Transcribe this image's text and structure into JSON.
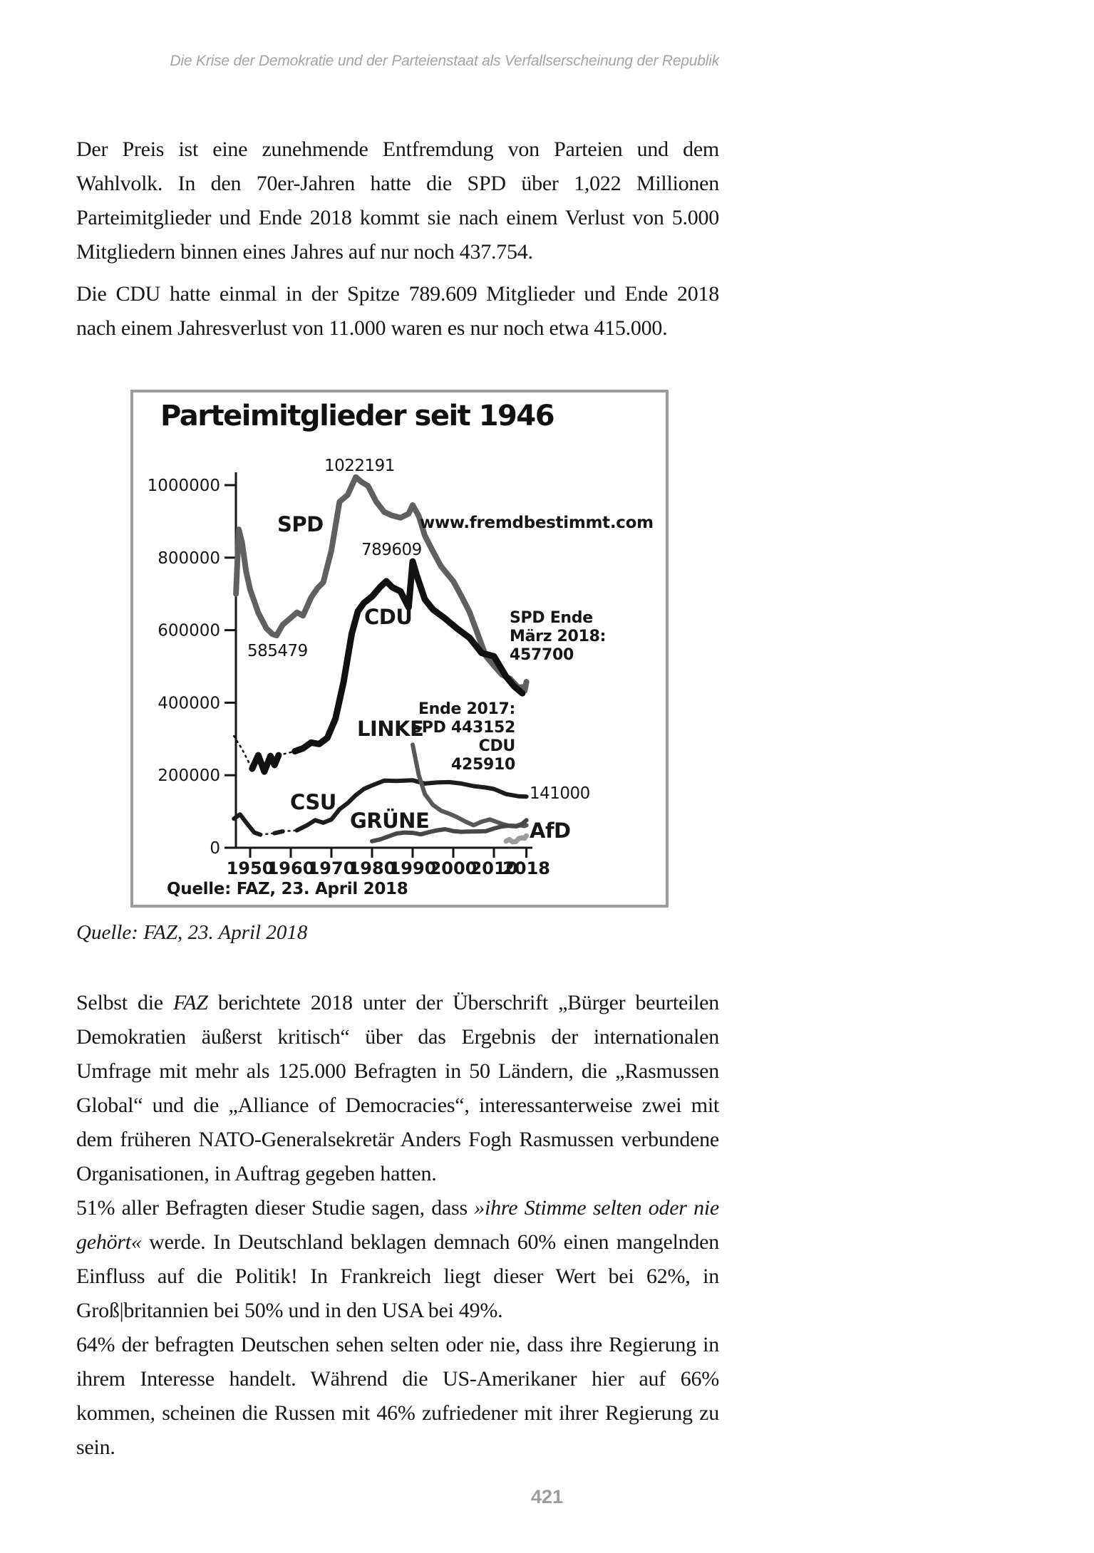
{
  "page": {
    "header": "Die Krise der Demokratie und der Parteienstaat als Verfallserscheinung der Republik",
    "page_number": "421"
  },
  "paragraphs": {
    "p1": "Der Preis ist eine zunehmende Entfremdung von Parteien und dem Wahlvolk. In den 70er-Jahren hatte die SPD über 1,022 Millionen Parteimitglieder und Ende 2018 kommt sie nach einem Verlust von 5.000 Mitgliedern binnen eines Jahres auf nur noch 437.754.",
    "p2": "Die CDU hatte einmal in der Spitze 789.609 Mitglieder und Ende 2018 nach einem Jahresverlust von 11.000 waren es nur noch etwa 415.000.",
    "p3_pre": "Selbst die ",
    "p3_italic": "FAZ",
    "p3_post": " berichtete 2018 unter der Überschrift „Bürger beurteilen Demokratien äußerst kritisch“ über das Ergebnis der internationalen Umfrage mit mehr als 125.000 Befragten in 50 Ländern, die „Rasmussen Global“ und die „Alliance of Democracies“, interessanterweise zwei mit dem früheren NATO-Generalsekretär Anders Fogh Rasmussen verbundene Organisationen, in Auftrag gegeben hatten.",
    "p4_pre": "51% aller Befragten dieser Studie sagen, dass ",
    "p4_italic": "»ihre Stimme selten oder nie gehört«",
    "p4_post": " werde. In Deutschland beklagen demnach 60% einen mangelnden Einfluss auf die Politik! In Frankreich liegt dieser Wert bei 62%, in Groß|britannien bei 50% und in den USA bei 49%.",
    "p5": "64% der befragten Deutschen sehen selten oder nie, dass ihre Regierung in ihrem Interesse handelt. Während die US-Amerikaner hier auf 66% kommen, scheinen die Russen mit 46% zufriedener mit ihrer Regierung zu sein."
  },
  "figure": {
    "caption": "Quelle: FAZ, 23. April 2018"
  },
  "chart_data": {
    "type": "line",
    "title": "Parteimitglieder seit 1946",
    "source": "Quelle: FAZ, 23. April 2018",
    "xlabel": "",
    "ylabel": "",
    "xlim": [
      1946,
      2018
    ],
    "ylim": [
      0,
      1050000
    ],
    "grid": false,
    "legend_position": "inline-labels",
    "colors": {
      "border": "#9d9d9d",
      "axis": "#161616",
      "spd": "#606060",
      "cdu": "#111111",
      "csu": "#1c1c1c",
      "linke": "#585858",
      "gruene": "#474747",
      "afd": "#9c9c9c"
    },
    "labels": {
      "spd_peak": "1022191",
      "spd": "SPD",
      "watermark": "www.fremdbestimmt.com",
      "cdu_peak": "789609",
      "cdu": "CDU",
      "spd_min": "585479",
      "spd_2018": "SPD Ende\nMärz 2018:\n457700",
      "ende_2017": "Ende 2017:\nSPD 443152\nCDU 425910",
      "linke": "LINKE",
      "csu_end": "141000",
      "csu": "CSU",
      "gruene": "GRÜNE",
      "afd": "AfD"
    },
    "y_ticks": [
      {
        "label": "1000000",
        "value": 1000000
      },
      {
        "label": "800000",
        "value": 800000
      },
      {
        "label": "600000",
        "value": 600000
      },
      {
        "label": "400000",
        "value": 400000
      },
      {
        "label": "200000",
        "value": 200000
      },
      {
        "label": "0",
        "value": 0
      }
    ],
    "x_ticks": [
      {
        "label": "1950",
        "value": 1950
      },
      {
        "label": "1960",
        "value": 1960
      },
      {
        "label": "1970",
        "value": 1970
      },
      {
        "label": "1980",
        "value": 1980
      },
      {
        "label": "1990",
        "value": 1990
      },
      {
        "label": "2000",
        "value": 2000
      },
      {
        "label": "2010",
        "value": 2010
      },
      {
        "label": "2018",
        "value": 2018
      }
    ],
    "series": [
      {
        "name": "SPD",
        "color": "#606060",
        "width": 8,
        "segments": [
          {
            "style": "solid",
            "points": [
              [
                1946.5,
                700000
              ],
              [
                1947.2,
                878000
              ],
              [
                1948,
                842000
              ],
              [
                1949,
                762000
              ],
              [
                1950,
                712000
              ],
              [
                1952,
                648000
              ],
              [
                1954,
                605000
              ],
              [
                1955.5,
                589000
              ],
              [
                1956.5,
                585479
              ],
              [
                1958,
                615000
              ],
              [
                1960,
                634000
              ],
              [
                1961.5,
                649000
              ],
              [
                1963,
                640000
              ],
              [
                1965,
                690000
              ],
              [
                1966.5,
                715000
              ],
              [
                1968,
                732000
              ],
              [
                1970,
                820000
              ],
              [
                1972,
                954000
              ],
              [
                1974,
                973000
              ],
              [
                1976,
                1022191
              ],
              [
                1977.5,
                1008000
              ],
              [
                1979,
                998000
              ],
              [
                1981,
                955000
              ],
              [
                1983,
                926000
              ],
              [
                1985,
                916000
              ],
              [
                1987,
                910000
              ],
              [
                1989,
                921000
              ],
              [
                1990,
                945000
              ],
              [
                1991.5,
                915000
              ],
              [
                1993,
                861000
              ],
              [
                1995,
                817000
              ],
              [
                1997,
                776000
              ],
              [
                2000,
                735000
              ],
              [
                2002,
                694000
              ],
              [
                2004,
                650000
              ],
              [
                2006,
                590000
              ],
              [
                2008,
                529000
              ],
              [
                2010,
                502000
              ],
              [
                2012,
                477000
              ],
              [
                2014,
                466000
              ],
              [
                2016,
                442000
              ],
              [
                2017,
                443152
              ],
              [
                2017.6,
                433000
              ],
              [
                2018,
                457700
              ]
            ]
          }
        ]
      },
      {
        "name": "CDU",
        "color": "#111111",
        "width": 9,
        "segments": [
          {
            "style": "dotted",
            "points": [
              [
                1946,
                308000
              ],
              [
                1948,
                272000
              ],
              [
                1950.5,
                218000
              ]
            ]
          },
          {
            "style": "solid",
            "points": [
              [
                1950.5,
                218000
              ],
              [
                1952,
                255000
              ],
              [
                1953.5,
                210000
              ],
              [
                1955,
                253000
              ],
              [
                1956,
                228000
              ],
              [
                1957,
                255000
              ]
            ]
          },
          {
            "style": "dotted",
            "points": [
              [
                1957,
                255000
              ],
              [
                1961,
                266000
              ]
            ]
          },
          {
            "style": "solid",
            "points": [
              [
                1961,
                266000
              ],
              [
                1963,
                274000
              ],
              [
                1965,
                290000
              ],
              [
                1967,
                286000
              ],
              [
                1969,
                303000
              ],
              [
                1971,
                356000
              ],
              [
                1973,
                457000
              ],
              [
                1975,
                590000
              ],
              [
                1976.5,
                652000
              ],
              [
                1978,
                675000
              ],
              [
                1980,
                693000
              ],
              [
                1982,
                719000
              ],
              [
                1983.5,
                735000
              ],
              [
                1985,
                718000
              ],
              [
                1987,
                707000
              ],
              [
                1989,
                663000
              ],
              [
                1990,
                789609
              ],
              [
                1991,
                751000
              ],
              [
                1993,
                685000
              ],
              [
                1995,
                657000
              ],
              [
                1998,
                632000
              ],
              [
                2001,
                604000
              ],
              [
                2004,
                579000
              ],
              [
                2007,
                537000
              ],
              [
                2010,
                528000
              ],
              [
                2013,
                472000
              ],
              [
                2015,
                445000
              ],
              [
                2017,
                425910
              ]
            ]
          }
        ]
      },
      {
        "name": "CSU",
        "color": "#1c1c1c",
        "width": 6,
        "segments": [
          {
            "style": "solid",
            "points": [
              [
                1946,
                80000
              ],
              [
                1947.5,
                92000
              ],
              [
                1949,
                70000
              ],
              [
                1951,
                42000
              ],
              [
                1952.5,
                36000
              ]
            ]
          },
          {
            "style": "dotted",
            "points": [
              [
                1952.5,
                36000
              ],
              [
                1956,
                40000
              ]
            ]
          },
          {
            "style": "solid",
            "points": [
              [
                1956,
                40000
              ],
              [
                1958,
                45000
              ]
            ]
          },
          {
            "style": "dotted",
            "points": [
              [
                1958,
                45000
              ],
              [
                1961.5,
                48000
              ]
            ]
          },
          {
            "style": "solid",
            "points": [
              [
                1961.5,
                48000
              ],
              [
                1964,
                62000
              ],
              [
                1966,
                76000
              ],
              [
                1968,
                69000
              ],
              [
                1970,
                78000
              ],
              [
                1972,
                106000
              ],
              [
                1974,
                123000
              ],
              [
                1976,
                145000
              ],
              [
                1978,
                162000
              ],
              [
                1980,
                172000
              ],
              [
                1983,
                185000
              ],
              [
                1986,
                184000
              ],
              [
                1990,
                186000
              ],
              [
                1993,
                177000
              ],
              [
                1996,
                180000
              ],
              [
                1999,
                181000
              ],
              [
                2002,
                177000
              ],
              [
                2005,
                170000
              ],
              [
                2008,
                166000
              ],
              [
                2010,
                162000
              ],
              [
                2013,
                148000
              ],
              [
                2016,
                142000
              ],
              [
                2018,
                141000
              ]
            ]
          }
        ]
      },
      {
        "name": "LINKE",
        "color": "#585858",
        "width": 6,
        "segments": [
          {
            "style": "solid",
            "points": [
              [
                1990,
                284000
              ],
              [
                1991.5,
                200000
              ],
              [
                1993,
                148000
              ],
              [
                1995,
                118000
              ],
              [
                1997,
                102000
              ],
              [
                1999,
                94000
              ],
              [
                2001,
                84000
              ],
              [
                2003,
                72000
              ],
              [
                2005,
                62000
              ],
              [
                2007,
                72000
              ],
              [
                2009,
                78000
              ],
              [
                2011,
                70000
              ],
              [
                2012.5,
                64000
              ],
              [
                2014,
                60000
              ],
              [
                2015.5,
                59000
              ],
              [
                2016.5,
                62000
              ],
              [
                2017.5,
                60000
              ],
              [
                2018,
                62000
              ]
            ]
          }
        ]
      },
      {
        "name": "GRUENE",
        "color": "#474747",
        "width": 6,
        "segments": [
          {
            "style": "solid",
            "points": [
              [
                1980,
                18000
              ],
              [
                1982,
                23000
              ],
              [
                1984,
                31000
              ],
              [
                1986,
                39000
              ],
              [
                1988,
                42000
              ],
              [
                1990,
                41000
              ],
              [
                1992,
                37000
              ],
              [
                1994,
                43000
              ],
              [
                1996,
                48000
              ],
              [
                1998,
                51000
              ],
              [
                2000,
                46000
              ],
              [
                2002,
                44000
              ],
              [
                2004,
                44500
              ],
              [
                2006,
                45000
              ],
              [
                2008,
                45500
              ],
              [
                2010,
                53000
              ],
              [
                2012,
                59000
              ],
              [
                2014,
                61000
              ],
              [
                2015.5,
                60000
              ],
              [
                2017,
                66000
              ],
              [
                2018,
                76000
              ]
            ]
          }
        ]
      },
      {
        "name": "AFD",
        "color": "#9c9c9c",
        "width": 7,
        "segments": [
          {
            "style": "solid",
            "points": [
              [
                2013,
                18000
              ],
              [
                2013.8,
                23000
              ],
              [
                2014.6,
                16000
              ],
              [
                2015.4,
                17000
              ],
              [
                2016.2,
                26000
              ],
              [
                2017,
                27500
              ],
              [
                2017.5,
                26000
              ],
              [
                2018,
                33000
              ]
            ]
          }
        ]
      }
    ]
  }
}
